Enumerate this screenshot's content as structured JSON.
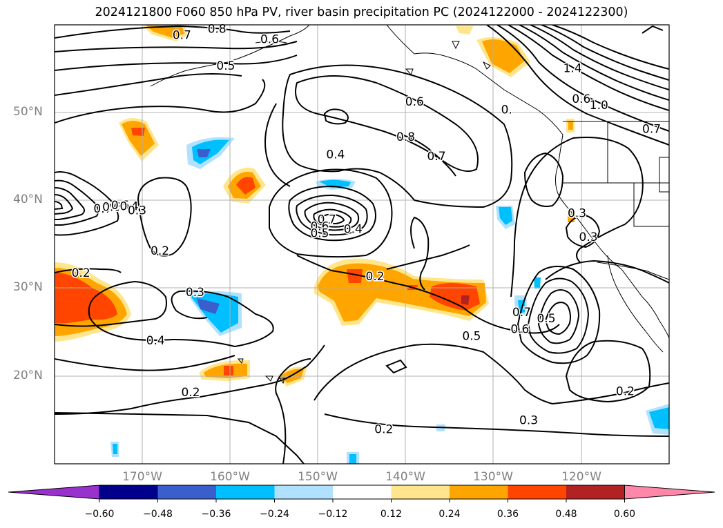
{
  "title": "2024121800 F060 850 hPa PV, river basin precipitation PC (2024122000 - 2024122300)",
  "axes": {
    "lat_ticks": [
      {
        "label": "50°N",
        "value": 50
      },
      {
        "label": "40°N",
        "value": 40
      },
      {
        "label": "30°N",
        "value": 30
      },
      {
        "label": "20°N",
        "value": 20
      }
    ],
    "lon_ticks": [
      {
        "label": "170°W",
        "value": -170
      },
      {
        "label": "160°W",
        "value": -160
      },
      {
        "label": "150°W",
        "value": -150
      },
      {
        "label": "140°W",
        "value": -140
      },
      {
        "label": "130°W",
        "value": -130
      },
      {
        "label": "120°W",
        "value": -120
      }
    ],
    "lon_range": [
      -180,
      -110
    ],
    "lat_range": [
      10,
      60
    ],
    "grid": true
  },
  "colorbar": {
    "labels": [
      "−0.60",
      "−0.48",
      "−0.36",
      "−0.24",
      "−0.12",
      "0.12",
      "0.24",
      "0.36",
      "0.48",
      "0.60"
    ],
    "colors": [
      "#9932cc",
      "#00008b",
      "#3a5fcd",
      "#00bfff",
      "#b0e2ff",
      "#ffffff",
      "#ffe68c",
      "#ffa500",
      "#ff4500",
      "#b22222",
      "#ff88aa"
    ]
  },
  "contour_labels": [
    {
      "text": "0.7",
      "lon": -165.5,
      "lat": 58.8
    },
    {
      "text": "0.8",
      "lon": -161.5,
      "lat": 59.5
    },
    {
      "text": "0.6",
      "lon": -155.5,
      "lat": 58.3
    },
    {
      "text": "0.5",
      "lon": -160.5,
      "lat": 55.3
    },
    {
      "text": "0.6",
      "lon": -139,
      "lat": 51.2
    },
    {
      "text": "0.8",
      "lon": -140,
      "lat": 47.2
    },
    {
      "text": "0.7",
      "lon": -136.5,
      "lat": 45.0
    },
    {
      "text": "0.4",
      "lon": -148,
      "lat": 45.2
    },
    {
      "text": "0.7",
      "lon": -174.5,
      "lat": 39.0
    },
    {
      "text": "0.6",
      "lon": -173.5,
      "lat": 39.2
    },
    {
      "text": "0.5",
      "lon": -172.5,
      "lat": 39.4
    },
    {
      "text": "0.4",
      "lon": -171.5,
      "lat": 39.3
    },
    {
      "text": "0.3",
      "lon": -170.6,
      "lat": 38.8
    },
    {
      "text": "0.2",
      "lon": -168,
      "lat": 34.2
    },
    {
      "text": "0.7",
      "lon": -149,
      "lat": 37.8
    },
    {
      "text": "0.6",
      "lon": -149.8,
      "lat": 37.0
    },
    {
      "text": "0.5",
      "lon": -149.8,
      "lat": 36.2
    },
    {
      "text": "0.4",
      "lon": -146,
      "lat": 36.7
    },
    {
      "text": "0.2",
      "lon": -177,
      "lat": 31.7
    },
    {
      "text": "0.3",
      "lon": -164,
      "lat": 29.5
    },
    {
      "text": "0.4",
      "lon": -168.5,
      "lat": 24.0
    },
    {
      "text": "0.2",
      "lon": -143.5,
      "lat": 31.3
    },
    {
      "text": "0.5",
      "lon": -132.5,
      "lat": 24.5
    },
    {
      "text": "0.2",
      "lon": -164.5,
      "lat": 18.1
    },
    {
      "text": "0.3",
      "lon": -126,
      "lat": 14.9
    },
    {
      "text": "0.2",
      "lon": -142.5,
      "lat": 13.9
    },
    {
      "text": "0.7",
      "lon": -126.8,
      "lat": 27.2
    },
    {
      "text": "0.6",
      "lon": -127,
      "lat": 25.3
    },
    {
      "text": "0.5",
      "lon": -124,
      "lat": 26.5
    },
    {
      "text": "0.2",
      "lon": -115,
      "lat": 18.2
    },
    {
      "text": "0.3",
      "lon": -120.5,
      "lat": 38.5
    },
    {
      "text": "0.3",
      "lon": -119.2,
      "lat": 35.8
    },
    {
      "text": "0.",
      "lon": -128.5,
      "lat": 50.3
    },
    {
      "text": "1.4",
      "lon": -121,
      "lat": 55.0
    },
    {
      "text": "0.6",
      "lon": -120,
      "lat": 51.5
    },
    {
      "text": "1.0",
      "lon": -118,
      "lat": 50.8
    },
    {
      "text": "0.7",
      "lon": -112,
      "lat": 48.1
    }
  ]
}
